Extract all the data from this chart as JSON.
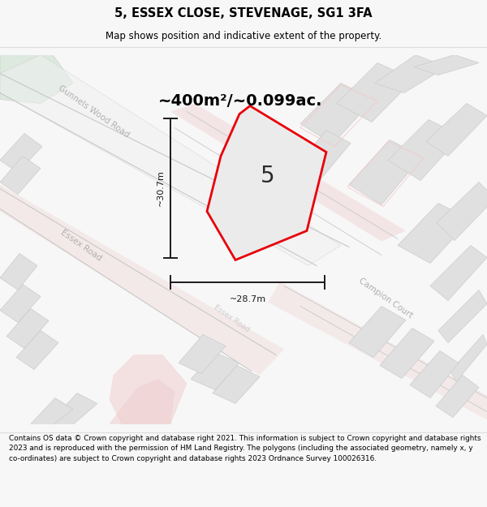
{
  "title_line1": "5, ESSEX CLOSE, STEVENAGE, SG1 3FA",
  "title_line2": "Map shows position and indicative extent of the property.",
  "area_text": "~400m²/~0.099ac.",
  "label_number": "5",
  "dim_height": "~30.7m",
  "dim_width": "~28.7m",
  "footer_text": "Contains OS data © Crown copyright and database right 2021. This information is subject to Crown copyright and database rights 2023 and is reproduced with the permission of HM Land Registry. The polygons (including the associated geometry, namely x, y co-ordinates) are subject to Crown copyright and database rights 2023 Ordnance Survey 100026316.",
  "bg_color": "#f7f7f7",
  "map_bg": "#ffffff",
  "plot_fill": "#ebebeb",
  "plot_outline": "#e8000a",
  "title_color": "#000000",
  "footer_color": "#000000",
  "road_gray": "#d8d8d8",
  "road_line": "#c8c8c8",
  "road_pink": "#f0d0d0",
  "road_pink2": "#f5c8c8",
  "block_gray": "#e0e0e0",
  "block_edge": "#cccccc",
  "green_corner": "#dde8de",
  "road_label_color": "#b0b0b0",
  "dim_color": "#1a1a1a"
}
